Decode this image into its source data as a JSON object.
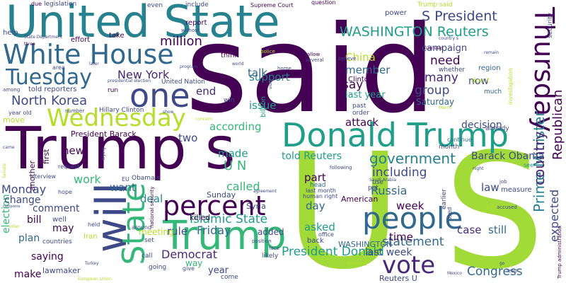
{
  "words": {
    "said": "said",
    "us_big": "U S",
    "trump_s": "Trump s",
    "united_state": "United State",
    "trump": "Trump",
    "donald_trump": "Donald Trump",
    "white_house": "White House",
    "will": "will",
    "people": "people",
    "one": "one",
    "wednesday": "Wednesday",
    "tuesday": "Tuesday",
    "thursday": "Thursday",
    "percent": "percent",
    "state": "State",
    "vote": "vote",
    "prime_minister": "Prime Minister",
    "washington_reuters": "WASHINGTON Reuters",
    "s_president": "S President",
    "million": "million",
    "north_korea": "North Korea",
    "new_york": "New York",
    "government": "government",
    "republican": "Republican",
    "country": "country",
    "expected": "expected",
    "islamic_state": "Islamic State",
    "president_donald": "President Donald",
    "congress": "Congress",
    "democrat": "Democrat",
    "russia": "Russia",
    "including": "including",
    "statement": "statement",
    "u_n": "U N",
    "work": "work",
    "monday": "Monday",
    "friday": "Friday",
    "china": "China",
    "support": "support",
    "talk": "talk",
    "member": "member",
    "many": "many",
    "group": "group",
    "need": "need",
    "say": "say",
    "now": "now",
    "end": "end",
    "two": "two",
    "made": "made",
    "according": "according",
    "called": "called",
    "attack": "attack",
    "issue": "issue",
    "new": "new",
    "want": "want",
    "deal": "deal",
    "rule": "rule",
    "part": "part",
    "day": "day",
    "asked": "asked",
    "week": "week",
    "law": "law",
    "case": "case",
    "still": "still",
    "time": "time",
    "last_week": "last week",
    "bill": "bill",
    "may": "may",
    "comment": "comment",
    "plan": "plan",
    "saying": "saying",
    "make": "make",
    "year": "year",
    "election": "election",
    "change": "change",
    "decision": "decision",
    "told_reuters": "told Reuters",
    "barack_obama": "Barack Obama",
    "campaign": "campaign",
    "last_year": "last year",
    "saturday": "Saturday",
    "way": "way",
    "sunday": "Sunday",
    "meeting": "meeting",
    "added": "added",
    "lawmaker": "lawmaker",
    "president_barack": "President Barack",
    "washington": "WASHINGTON",
    "reuters_u": "Reuters U",
    "american": "American",
    "syria": "Syria",
    "killed": "killed",
    "think": "think",
    "first": "first",
    "another": "another",
    "clinton": "Clinton",
    "power": "power",
    "region": "region",
    "whether": "whether",
    "dont": "don t",
    "much": "much",
    "month": "month",
    "already": "already",
    "continue": "continue",
    "see": "see",
    "put": "put",
    "use": "use",
    "head": "head",
    "told_reporters": "told reporters",
    "hillary_clinton": "Hillary Clinton",
    "report": "report",
    "effort": "effort",
    "take": "take",
    "help": "help",
    "legislation": "legislation",
    "even": "even",
    "include": "include",
    "supreme_court": "Supreme Court",
    "question": "question",
    "trump_said": "Trump said",
    "security": "security",
    "official_said": "official said",
    "investigation": "investigation",
    "united_nation": "United Nation",
    "state_department": "State Department",
    "three": "three",
    "due": "due",
    "area": "area",
    "later": "later",
    "among": "among",
    "run": "run",
    "win": "win",
    "billion": "billion",
    "police": "police",
    "allow": "allow",
    "several": "several",
    "believe": "believe",
    "home": "home",
    "visit": "visit",
    "program": "program",
    "world": "world",
    "year_old": "year old",
    "move": "move",
    "number": "number",
    "show": "show",
    "concern": "concern",
    "came": "came",
    "request": "request",
    "trying": "trying",
    "interview": "interview",
    "hope": "hope",
    "well": "well",
    "held": "held",
    "around": "around",
    "obama_s": "Obama s",
    "eu": "EU",
    "national_security": "national security",
    "senate": "Senate",
    "companie": "companie",
    "voter": "voter",
    "countries": "countries",
    "iran": "Iran",
    "turkey": "Turkey",
    "european_union": "European Union",
    "going": "going",
    "give": "give",
    "call": "call",
    "come": "come",
    "set": "set",
    "agreement": "agreement",
    "likely": "likely",
    "position": "position",
    "face": "face",
    "back": "back",
    "office": "office",
    "following": "following",
    "last_month": "last month",
    "human_right": "human right",
    "saudi_arabia": "Saudi Arabia",
    "possible": "possible",
    "party": "party",
    "accused": "accused",
    "earlier": "earlier",
    "used": "used",
    "mexico": "Mexico",
    "lead": "lead",
    "go": "go",
    "job": "job",
    "measure": "measure",
    "night": "night",
    "trump_administration": "Trump administration",
    "country_s": "country s",
    "remain": "remain",
    "without": "without",
    "presidential_election": "presidential election",
    "march": "March",
    "order": "order",
    "past": "past"
  },
  "colors": {
    "dark_purple": "#440154",
    "purple": "#482878",
    "indigo": "#3e4989",
    "blue": "#31688e",
    "teal_blue": "#26828e",
    "teal": "#1f9e89",
    "green": "#35b779",
    "light_green": "#6ece58",
    "lime": "#b5de2b",
    "yellow": "#fde725"
  }
}
